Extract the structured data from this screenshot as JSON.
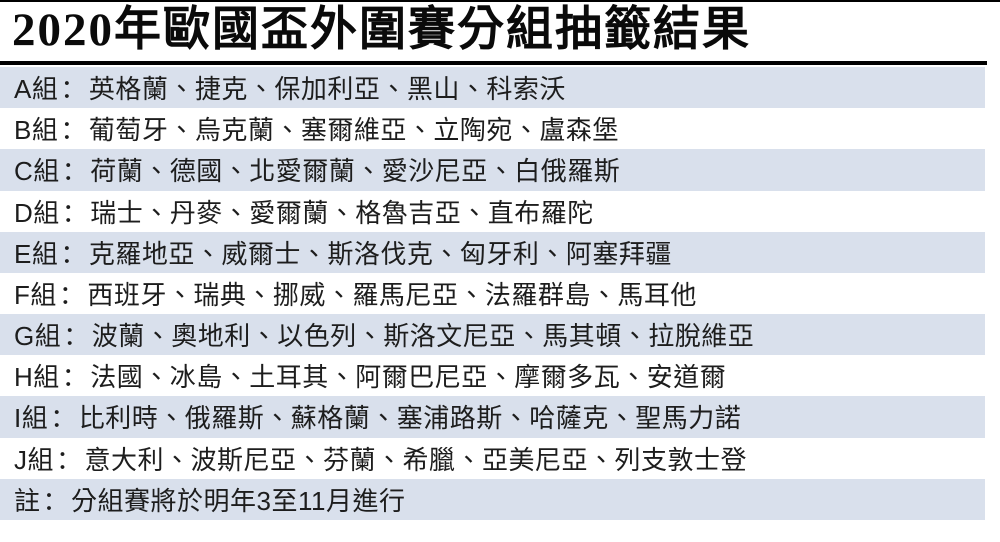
{
  "title": "2020年歐國盃外圍賽分組抽籤結果",
  "separator": "：",
  "team_joiner": "、",
  "colors": {
    "row_highlight": "#d9e0ec",
    "row_plain": "#ffffff",
    "rule": "#000000",
    "text": "#1d1d1d"
  },
  "table": {
    "rows": [
      {
        "label": "A組",
        "teams": [
          "英格蘭",
          "捷克",
          "保加利亞",
          "黑山",
          "科索沃"
        ]
      },
      {
        "label": "B組",
        "teams": [
          "葡萄牙",
          "烏克蘭",
          "塞爾維亞",
          "立陶宛",
          "盧森堡"
        ]
      },
      {
        "label": "C組",
        "teams": [
          "荷蘭",
          "德國",
          "北愛爾蘭",
          "愛沙尼亞",
          "白俄羅斯"
        ]
      },
      {
        "label": "D組",
        "teams": [
          "瑞士",
          "丹麥",
          "愛爾蘭",
          "格魯吉亞",
          "直布羅陀"
        ]
      },
      {
        "label": "E組",
        "teams": [
          "克羅地亞",
          "威爾士",
          "斯洛伐克",
          "匈牙利",
          "阿塞拜疆"
        ]
      },
      {
        "label": "F組",
        "teams": [
          "西班牙",
          "瑞典",
          "挪威",
          "羅馬尼亞",
          "法羅群島",
          "馬耳他"
        ]
      },
      {
        "label": "G組",
        "teams": [
          "波蘭",
          "奧地利",
          "以色列",
          "斯洛文尼亞",
          "馬其頓",
          "拉脫維亞"
        ]
      },
      {
        "label": "H組",
        "teams": [
          "法國",
          "冰島",
          "土耳其",
          "阿爾巴尼亞",
          "摩爾多瓦",
          "安道爾"
        ]
      },
      {
        "label": "I組",
        "teams": [
          "比利時",
          "俄羅斯",
          "蘇格蘭",
          "塞浦路斯",
          "哈薩克",
          "聖馬力諾"
        ]
      },
      {
        "label": "J組",
        "teams": [
          "意大利",
          "波斯尼亞",
          "芬蘭",
          "希臘",
          "亞美尼亞",
          "列支敦士登"
        ]
      }
    ],
    "note": {
      "label": "註",
      "text": "分組賽將於明年3至11月進行"
    }
  }
}
